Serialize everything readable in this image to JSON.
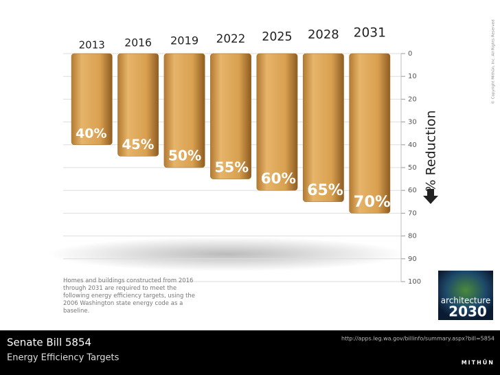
{
  "chart_data": {
    "type": "bar",
    "title": "Senate Bill 5854",
    "subtitle": "Energy Efficiency Targets",
    "y_label": "% Reduction",
    "y_inverted": true,
    "categories": [
      "2013",
      "2016",
      "2019",
      "2022",
      "2025",
      "2028",
      "2031"
    ],
    "values": [
      40,
      45,
      50,
      55,
      60,
      65,
      70
    ],
    "value_labels": [
      "40%",
      "45%",
      "50%",
      "55%",
      "60%",
      "65%",
      "70%"
    ],
    "color": "#d9a050",
    "ylim": [
      0,
      100
    ],
    "yticks": [
      0,
      10,
      20,
      30,
      40,
      50,
      60,
      70,
      80,
      90,
      100
    ],
    "grid": true,
    "caption": "Homes and buildings constructed from 2016 through 2031 are required to meet the following energy efficiency targets, using the 2006 Washington state energy code as a baseline.",
    "source": "http://apps.leg.wa.gov/billinfo/summary.aspx?bill=5854",
    "brand": "MITHŪN",
    "copyright": "© Copyright Mithūn, Inc. All Rights Reserved",
    "logo_text": [
      "architecture",
      "2030"
    ]
  }
}
